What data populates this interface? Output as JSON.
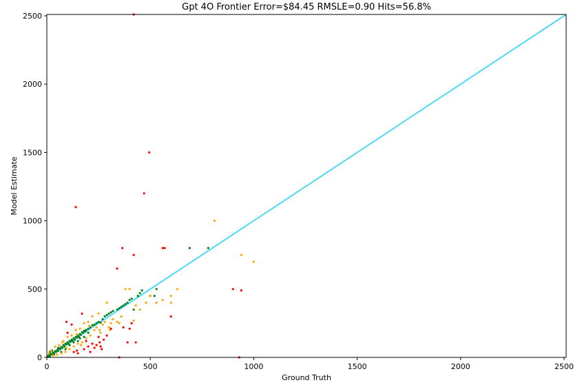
{
  "chart_data": {
    "type": "scatter",
    "title": "Gpt 4O Frontier Error=$84.45 RMSLE=0.90 Hits=56.8%",
    "xlabel": "Ground Truth",
    "ylabel": "Model Estimate",
    "xlim": [
      0,
      2510
    ],
    "ylim": [
      0,
      2510
    ],
    "xticks": [
      0,
      500,
      1000,
      1500,
      2000,
      2500
    ],
    "yticks": [
      0,
      500,
      1000,
      1500,
      2000,
      2500
    ],
    "grid": false,
    "colors": {
      "reference_line": "#4dd8f5",
      "green": "#007f1f",
      "orange": "#ffa500",
      "red": "#ff0000"
    },
    "reference_line": {
      "x": [
        0,
        2510
      ],
      "y": [
        0,
        2510
      ]
    },
    "series": [
      {
        "color_key": "green",
        "points": [
          [
            5,
            5
          ],
          [
            8,
            12
          ],
          [
            12,
            18
          ],
          [
            15,
            10
          ],
          [
            20,
            25
          ],
          [
            25,
            20
          ],
          [
            30,
            35
          ],
          [
            35,
            28
          ],
          [
            40,
            45
          ],
          [
            45,
            40
          ],
          [
            50,
            55
          ],
          [
            55,
            48
          ],
          [
            60,
            65
          ],
          [
            65,
            60
          ],
          [
            70,
            75
          ],
          [
            75,
            70
          ],
          [
            80,
            90
          ],
          [
            85,
            80
          ],
          [
            90,
            100
          ],
          [
            95,
            95
          ],
          [
            100,
            110
          ],
          [
            105,
            100
          ],
          [
            110,
            120
          ],
          [
            115,
            115
          ],
          [
            120,
            130
          ],
          [
            125,
            120
          ],
          [
            130,
            140
          ],
          [
            135,
            130
          ],
          [
            140,
            150
          ],
          [
            145,
            145
          ],
          [
            150,
            160
          ],
          [
            155,
            150
          ],
          [
            160,
            170
          ],
          [
            165,
            165
          ],
          [
            170,
            185
          ],
          [
            175,
            180
          ],
          [
            180,
            195
          ],
          [
            185,
            190
          ],
          [
            190,
            200
          ],
          [
            200,
            210
          ],
          [
            210,
            220
          ],
          [
            220,
            235
          ],
          [
            230,
            240
          ],
          [
            240,
            250
          ],
          [
            250,
            260
          ],
          [
            260,
            255
          ],
          [
            270,
            280
          ],
          [
            280,
            300
          ],
          [
            290,
            310
          ],
          [
            300,
            320
          ],
          [
            310,
            330
          ],
          [
            320,
            340
          ],
          [
            340,
            350
          ],
          [
            350,
            360
          ],
          [
            360,
            370
          ],
          [
            370,
            380
          ],
          [
            380,
            390
          ],
          [
            390,
            400
          ],
          [
            400,
            420
          ],
          [
            410,
            430
          ],
          [
            420,
            350
          ],
          [
            440,
            450
          ],
          [
            450,
            470
          ],
          [
            460,
            490
          ],
          [
            500,
            450
          ],
          [
            520,
            450
          ],
          [
            530,
            500
          ],
          [
            690,
            800
          ],
          [
            780,
            800
          ],
          [
            15,
            40
          ],
          [
            25,
            50
          ],
          [
            35,
            20
          ],
          [
            55,
            70
          ],
          [
            70,
            40
          ],
          [
            90,
            60
          ],
          [
            110,
            90
          ],
          [
            130,
            110
          ],
          [
            150,
            120
          ],
          [
            160,
            140
          ],
          [
            180,
            150
          ],
          [
            200,
            180
          ]
        ]
      },
      {
        "color_key": "orange",
        "points": [
          [
            10,
            30
          ],
          [
            20,
            50
          ],
          [
            30,
            15
          ],
          [
            40,
            80
          ],
          [
            50,
            20
          ],
          [
            60,
            90
          ],
          [
            70,
            30
          ],
          [
            80,
            120
          ],
          [
            90,
            40
          ],
          [
            100,
            150
          ],
          [
            110,
            60
          ],
          [
            120,
            160
          ],
          [
            130,
            80
          ],
          [
            140,
            200
          ],
          [
            150,
            100
          ],
          [
            160,
            210
          ],
          [
            170,
            110
          ],
          [
            180,
            250
          ],
          [
            190,
            140
          ],
          [
            200,
            260
          ],
          [
            210,
            160
          ],
          [
            220,
            300
          ],
          [
            230,
            200
          ],
          [
            240,
            220
          ],
          [
            250,
            320
          ],
          [
            260,
            180
          ],
          [
            270,
            240
          ],
          [
            280,
            260
          ],
          [
            290,
            400
          ],
          [
            300,
            220
          ],
          [
            310,
            250
          ],
          [
            320,
            280
          ],
          [
            340,
            260
          ],
          [
            350,
            250
          ],
          [
            360,
            300
          ],
          [
            380,
            500
          ],
          [
            400,
            500
          ],
          [
            420,
            270
          ],
          [
            430,
            380
          ],
          [
            450,
            350
          ],
          [
            480,
            400
          ],
          [
            500,
            450
          ],
          [
            530,
            400
          ],
          [
            560,
            420
          ],
          [
            600,
            450
          ],
          [
            600,
            400
          ],
          [
            630,
            500
          ],
          [
            810,
            1000
          ],
          [
            940,
            750
          ],
          [
            1000,
            700
          ],
          [
            75,
            110
          ],
          [
            95,
            70
          ],
          [
            145,
            170
          ],
          [
            165,
            90
          ],
          [
            205,
            230
          ],
          [
            255,
            200
          ],
          [
            305,
            200
          ]
        ]
      },
      {
        "color_key": "red",
        "points": [
          [
            95,
            260
          ],
          [
            100,
            180
          ],
          [
            120,
            240
          ],
          [
            140,
            1100
          ],
          [
            145,
            50
          ],
          [
            150,
            30
          ],
          [
            170,
            320
          ],
          [
            180,
            60
          ],
          [
            190,
            120
          ],
          [
            200,
            80
          ],
          [
            210,
            40
          ],
          [
            220,
            100
          ],
          [
            230,
            70
          ],
          [
            240,
            90
          ],
          [
            250,
            150
          ],
          [
            255,
            110
          ],
          [
            260,
            80
          ],
          [
            290,
            160
          ],
          [
            310,
            210
          ],
          [
            340,
            650
          ],
          [
            350,
            0
          ],
          [
            365,
            800
          ],
          [
            370,
            220
          ],
          [
            390,
            110
          ],
          [
            400,
            210
          ],
          [
            410,
            250
          ],
          [
            420,
            750
          ],
          [
            430,
            110
          ],
          [
            470,
            1200
          ],
          [
            495,
            1500
          ],
          [
            560,
            800
          ],
          [
            570,
            800
          ],
          [
            600,
            300
          ],
          [
            900,
            500
          ],
          [
            930,
            0
          ],
          [
            940,
            490
          ],
          [
            420,
            2510
          ],
          [
            265,
            60
          ],
          [
            275,
            130
          ],
          [
            130,
            40
          ]
        ]
      }
    ]
  }
}
